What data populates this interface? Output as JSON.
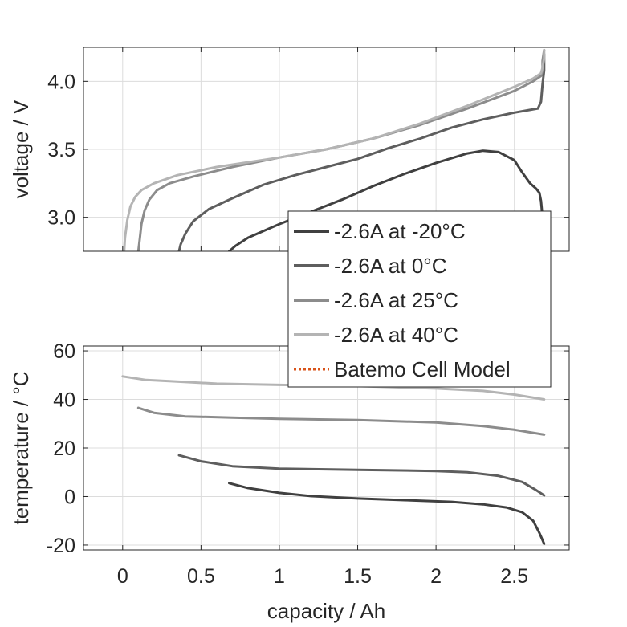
{
  "chart_data": [
    {
      "type": "line",
      "ylabel": "voltage / V",
      "xlim": [
        -0.25,
        2.85
      ],
      "ylim": [
        2.75,
        4.25
      ],
      "xticks": [
        0,
        0.5,
        1,
        1.5,
        2,
        2.5
      ],
      "yticks": [
        3.0,
        3.5,
        4.0
      ],
      "ytick_labels": [
        "3.0",
        "3.5",
        "4.0"
      ],
      "grid": true,
      "legend_position": "bottom-right",
      "series": [
        {
          "name": "-2.6A at -20°C",
          "color": "#404040",
          "points": [
            [
              0.68,
              2.75
            ],
            [
              0.72,
              2.79
            ],
            [
              0.8,
              2.85
            ],
            [
              0.9,
              2.9
            ],
            [
              1.0,
              2.95
            ],
            [
              1.2,
              3.04
            ],
            [
              1.4,
              3.13
            ],
            [
              1.6,
              3.23
            ],
            [
              1.8,
              3.32
            ],
            [
              2.0,
              3.4
            ],
            [
              2.2,
              3.47
            ],
            [
              2.3,
              3.49
            ],
            [
              2.4,
              3.48
            ],
            [
              2.5,
              3.42
            ],
            [
              2.55,
              3.33
            ],
            [
              2.6,
              3.25
            ],
            [
              2.64,
              3.21
            ],
            [
              2.66,
              3.18
            ],
            [
              2.67,
              3.12
            ],
            [
              2.68,
              3.0
            ],
            [
              2.69,
              2.88
            ],
            [
              2.69,
              2.75
            ]
          ]
        },
        {
          "name": "-2.6A at 0°C",
          "color": "#5e5e5e",
          "points": [
            [
              0.36,
              2.75
            ],
            [
              0.37,
              2.8
            ],
            [
              0.4,
              2.88
            ],
            [
              0.45,
              2.97
            ],
            [
              0.55,
              3.06
            ],
            [
              0.7,
              3.14
            ],
            [
              0.9,
              3.24
            ],
            [
              1.1,
              3.31
            ],
            [
              1.3,
              3.37
            ],
            [
              1.5,
              3.43
            ],
            [
              1.7,
              3.51
            ],
            [
              1.9,
              3.58
            ],
            [
              2.1,
              3.66
            ],
            [
              2.3,
              3.72
            ],
            [
              2.5,
              3.77
            ],
            [
              2.6,
              3.79
            ],
            [
              2.65,
              3.8
            ],
            [
              2.67,
              3.85
            ],
            [
              2.68,
              3.98
            ],
            [
              2.69,
              4.08
            ],
            [
              2.69,
              4.2
            ]
          ]
        },
        {
          "name": "-2.6A at 25°C",
          "color": "#8c8c8c",
          "points": [
            [
              0.1,
              2.75
            ],
            [
              0.11,
              2.85
            ],
            [
              0.12,
              2.95
            ],
            [
              0.14,
              3.05
            ],
            [
              0.17,
              3.13
            ],
            [
              0.22,
              3.2
            ],
            [
              0.3,
              3.25
            ],
            [
              0.45,
              3.3
            ],
            [
              0.7,
              3.37
            ],
            [
              1.0,
              3.44
            ],
            [
              1.3,
              3.5
            ],
            [
              1.6,
              3.58
            ],
            [
              1.9,
              3.68
            ],
            [
              2.2,
              3.8
            ],
            [
              2.5,
              3.93
            ],
            [
              2.62,
              4.0
            ],
            [
              2.67,
              4.04
            ],
            [
              2.68,
              4.08
            ],
            [
              2.68,
              4.15
            ],
            [
              2.69,
              4.23
            ]
          ]
        },
        {
          "name": "-2.6A at 40°C",
          "color": "#b4b4b4",
          "points": [
            [
              0.01,
              2.75
            ],
            [
              0.015,
              2.85
            ],
            [
              0.03,
              2.98
            ],
            [
              0.05,
              3.08
            ],
            [
              0.08,
              3.15
            ],
            [
              0.12,
              3.2
            ],
            [
              0.2,
              3.25
            ],
            [
              0.35,
              3.31
            ],
            [
              0.6,
              3.37
            ],
            [
              1.0,
              3.44
            ],
            [
              1.3,
              3.5
            ],
            [
              1.6,
              3.58
            ],
            [
              1.9,
              3.69
            ],
            [
              2.2,
              3.82
            ],
            [
              2.5,
              3.96
            ],
            [
              2.62,
              4.02
            ],
            [
              2.67,
              4.06
            ],
            [
              2.68,
              4.1
            ],
            [
              2.69,
              4.17
            ],
            [
              2.69,
              4.23
            ]
          ]
        }
      ]
    },
    {
      "type": "line",
      "xlabel": "capacity / Ah",
      "ylabel": "temperature / °C",
      "xlim": [
        -0.25,
        2.85
      ],
      "ylim": [
        -22,
        62
      ],
      "xticks": [
        0,
        0.5,
        1,
        1.5,
        2,
        2.5
      ],
      "xtick_labels": [
        "0",
        "0.5",
        "1",
        "1.5",
        "2",
        "2.5"
      ],
      "yticks": [
        -20,
        0,
        20,
        40,
        60
      ],
      "ytick_labels": [
        "-20",
        "0",
        "20",
        "40",
        "60"
      ],
      "grid": true,
      "series": [
        {
          "name": "-2.6A at -20°C",
          "color": "#404040",
          "points": [
            [
              0.68,
              5.5
            ],
            [
              0.8,
              3.5
            ],
            [
              1.0,
              1.5
            ],
            [
              1.2,
              0.2
            ],
            [
              1.5,
              -0.8
            ],
            [
              1.8,
              -1.5
            ],
            [
              2.1,
              -2.2
            ],
            [
              2.3,
              -3.2
            ],
            [
              2.45,
              -4.5
            ],
            [
              2.55,
              -6.5
            ],
            [
              2.62,
              -10
            ],
            [
              2.66,
              -15
            ],
            [
              2.69,
              -19.5
            ]
          ]
        },
        {
          "name": "-2.6A at 0°C",
          "color": "#5e5e5e",
          "points": [
            [
              0.36,
              17
            ],
            [
              0.5,
              14.5
            ],
            [
              0.7,
              12.5
            ],
            [
              1.0,
              11.5
            ],
            [
              1.5,
              11
            ],
            [
              2.0,
              10.5
            ],
            [
              2.2,
              10
            ],
            [
              2.4,
              8.5
            ],
            [
              2.55,
              6
            ],
            [
              2.63,
              3
            ],
            [
              2.69,
              0.5
            ]
          ]
        },
        {
          "name": "-2.6A at 25°C",
          "color": "#8c8c8c",
          "points": [
            [
              0.1,
              36.5
            ],
            [
              0.2,
              34.5
            ],
            [
              0.4,
              33
            ],
            [
              0.7,
              32.5
            ],
            [
              1.0,
              32
            ],
            [
              1.5,
              31.5
            ],
            [
              2.0,
              30.5
            ],
            [
              2.3,
              29
            ],
            [
              2.5,
              27.5
            ],
            [
              2.69,
              25.5
            ]
          ]
        },
        {
          "name": "-2.6A at 40°C",
          "color": "#b4b4b4",
          "points": [
            [
              0.0,
              49.5
            ],
            [
              0.15,
              48
            ],
            [
              0.3,
              47.5
            ],
            [
              0.6,
              46.5
            ],
            [
              1.0,
              46
            ],
            [
              1.5,
              45.5
            ],
            [
              2.0,
              44.5
            ],
            [
              2.3,
              43.5
            ],
            [
              2.5,
              42
            ],
            [
              2.69,
              40
            ]
          ]
        }
      ]
    }
  ],
  "legend": {
    "entries": [
      {
        "label": "-2.6A at -20°C",
        "color": "#404040",
        "style": "solid"
      },
      {
        "label": "-2.6A at 0°C",
        "color": "#5e5e5e",
        "style": "solid"
      },
      {
        "label": "-2.6A at 25°C",
        "color": "#8c8c8c",
        "style": "solid"
      },
      {
        "label": "-2.6A at 40°C",
        "color": "#b4b4b4",
        "style": "solid"
      },
      {
        "label": "Batemo Cell Model",
        "color": "#d95319",
        "style": "dotted"
      }
    ]
  }
}
